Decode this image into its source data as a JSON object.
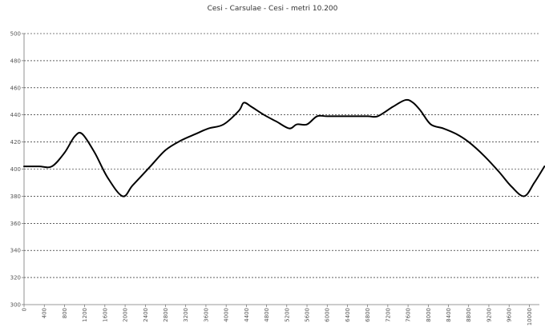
{
  "chart_data": {
    "type": "line",
    "title": "Cesi - Carsulae - Cesi - metri 10.200",
    "xlabel": "",
    "ylabel": "",
    "xlim": [
      0,
      10200
    ],
    "ylim": [
      300,
      500
    ],
    "y_ticks": [
      300,
      320,
      340,
      360,
      380,
      400,
      420,
      440,
      460,
      480,
      500
    ],
    "x_ticks": [
      0,
      400,
      800,
      1200,
      1600,
      2000,
      2400,
      2800,
      3200,
      3600,
      4000,
      4400,
      4800,
      5200,
      5600,
      6000,
      6400,
      6800,
      7200,
      7600,
      8000,
      8400,
      8800,
      9200,
      9600,
      10000
    ],
    "grid": {
      "horizontal": true,
      "vertical": false,
      "style": "dashed"
    },
    "line_color": "#000000",
    "series": [
      {
        "x": [
          0,
          300,
          550,
          800,
          1000,
          1150,
          1400,
          1650,
          1950,
          2150,
          2500,
          2800,
          3100,
          3400,
          3650,
          3950,
          4250,
          4350,
          4500,
          4750,
          5000,
          5250,
          5400,
          5600,
          5800,
          6000,
          6400,
          6800,
          7000,
          7300,
          7550,
          7700,
          7850,
          8050,
          8300,
          8550,
          8800,
          9100,
          9400,
          9650,
          9900,
          10100,
          10300
        ],
        "y": [
          402,
          402,
          402,
          412,
          424,
          426,
          412,
          394,
          380,
          388,
          402,
          414,
          421,
          426,
          430,
          433,
          443,
          449,
          446,
          440,
          435,
          430,
          433,
          433,
          439,
          439,
          439,
          439,
          439,
          446,
          451,
          449,
          443,
          433,
          430,
          426,
          420,
          410,
          398,
          387,
          380,
          390,
          402
        ]
      }
    ]
  }
}
